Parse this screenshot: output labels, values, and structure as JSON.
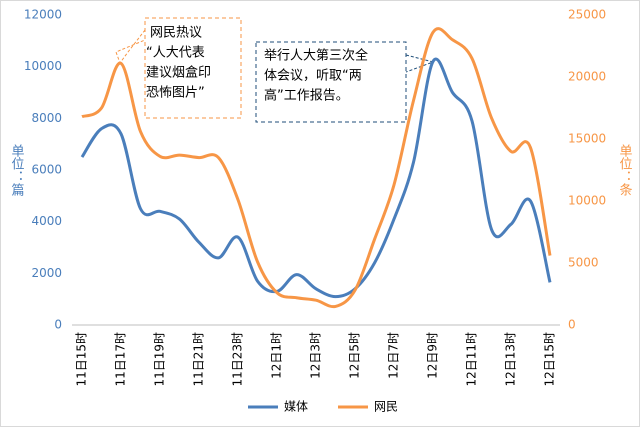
{
  "chart_data": {
    "type": "line",
    "categories": [
      "11日15时",
      null,
      "11日17时",
      null,
      "11日19时",
      null,
      "11日21时",
      null,
      "11日23时",
      null,
      "12日1时",
      null,
      "12日3时",
      null,
      "12日5时",
      null,
      "12日7时",
      null,
      "12日9时",
      null,
      "12日11时",
      null,
      "12日13时",
      null,
      "12日15时"
    ],
    "series": [
      {
        "name": "媒体",
        "color": "#4a7ebb",
        "axis": "y",
        "values": [
          6500,
          7600,
          7400,
          4500,
          4400,
          4100,
          3200,
          2600,
          3400,
          1700,
          1300,
          1950,
          1400,
          1100,
          1400,
          2400,
          4100,
          6300,
          10200,
          9000,
          7900,
          3700,
          3900,
          4800,
          1650
        ]
      },
      {
        "name": "网民",
        "color": "#f79646",
        "axis": "y2",
        "values": [
          16800,
          17500,
          21100,
          15600,
          13600,
          13700,
          13500,
          13500,
          10100,
          5100,
          2600,
          2200,
          2000,
          1500,
          2800,
          6900,
          11300,
          18100,
          23600,
          23000,
          21500,
          16700,
          14000,
          14300,
          5600
        ]
      }
    ],
    "ylim": [
      0,
      12000
    ],
    "yticks": [
      0,
      2000,
      4000,
      6000,
      8000,
      10000,
      12000
    ],
    "y2lim": [
      0,
      25000
    ],
    "y2ticks": [
      0,
      5000,
      10000,
      15000,
      20000,
      25000
    ],
    "ylabel": "单位：篇",
    "y2label": "单位：条",
    "annotations": [
      {
        "lines": [
          "网民热议",
          "“人大代表",
          "建议烟盒印",
          "恐怖图片”"
        ]
      },
      {
        "lines": [
          "举行人大第三次全",
          "体会议，听取“两",
          "高”工作报告。"
        ]
      }
    ],
    "legend": "bottom"
  }
}
